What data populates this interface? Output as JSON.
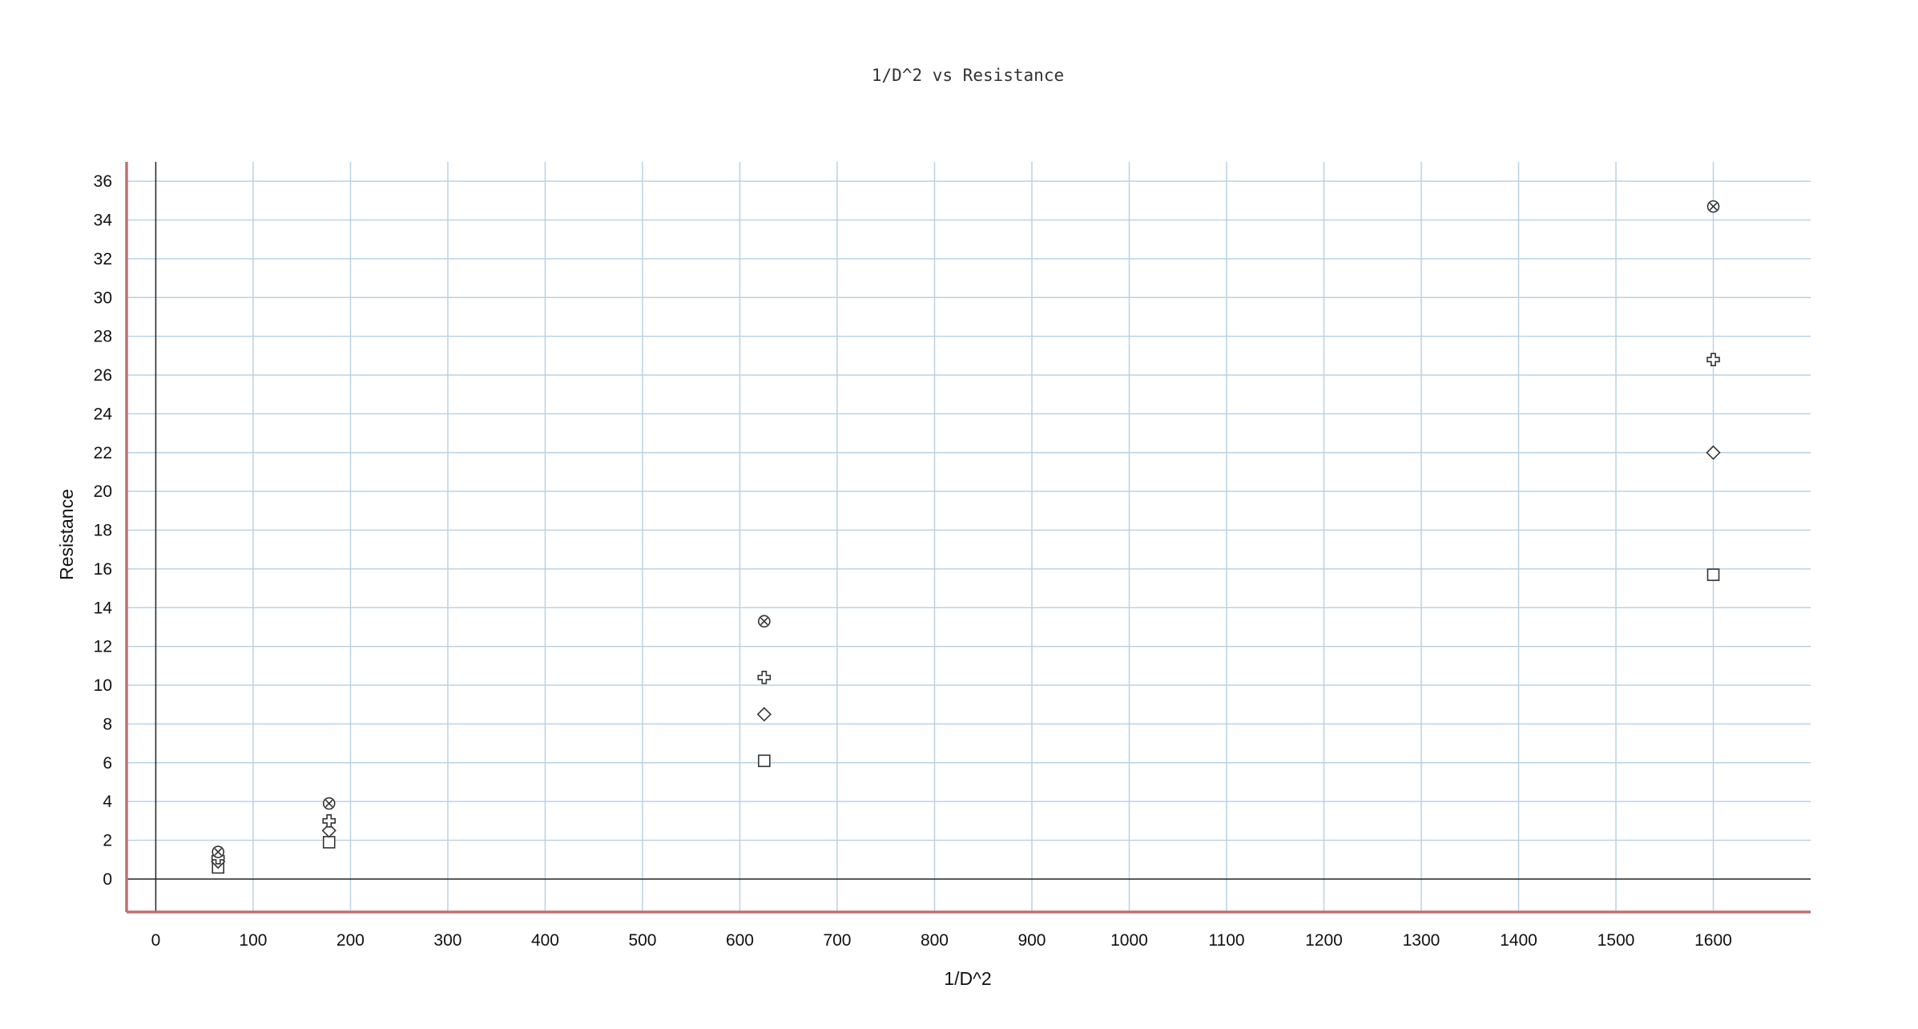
{
  "chart_data": {
    "type": "scatter",
    "title": "1/D^2 vs Resistance",
    "xlabel": "1/D^2",
    "ylabel": "Resistance",
    "xlim": [
      -30,
      1700
    ],
    "ylim": [
      -1.7,
      37
    ],
    "xticks": [
      0,
      100,
      200,
      300,
      400,
      500,
      600,
      700,
      800,
      900,
      1000,
      1100,
      1200,
      1300,
      1400,
      1500,
      1600
    ],
    "yticks": [
      0,
      2,
      4,
      6,
      8,
      10,
      12,
      14,
      16,
      18,
      20,
      22,
      24,
      26,
      28,
      30,
      32,
      34,
      36
    ],
    "grid": true,
    "legend": "none",
    "series": [
      {
        "marker": "square",
        "x": [
          64,
          178,
          625,
          1600
        ],
        "y": [
          0.6,
          1.9,
          6.1,
          15.7
        ]
      },
      {
        "marker": "diamond",
        "x": [
          64,
          178,
          625,
          1600
        ],
        "y": [
          0.9,
          2.5,
          8.5,
          22.0
        ]
      },
      {
        "marker": "plus",
        "x": [
          64,
          178,
          625,
          1600
        ],
        "y": [
          1.1,
          3.0,
          10.4,
          26.8
        ]
      },
      {
        "marker": "x-circle",
        "x": [
          64,
          178,
          625,
          1600
        ],
        "y": [
          1.4,
          3.9,
          13.3,
          34.7
        ]
      }
    ]
  }
}
